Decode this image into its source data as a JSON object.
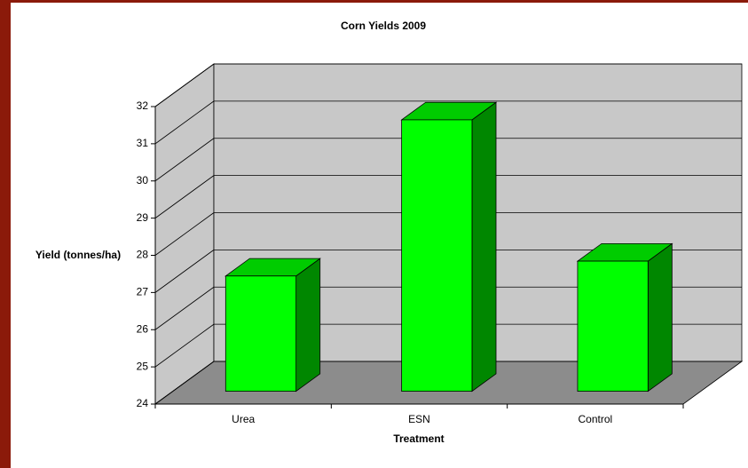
{
  "chart_data": {
    "type": "bar3d",
    "title": "Corn Yields 2009",
    "x_label": "Treatment",
    "y_label": "Yield (tonnes/ha)",
    "categories": [
      "Urea",
      "ESN",
      "Control"
    ],
    "values": [
      27.1,
      31.3,
      27.5
    ],
    "color": "#00ff00",
    "ylim": [
      24,
      32
    ],
    "yticks": [
      24,
      25,
      26,
      27,
      28,
      29,
      30,
      31,
      32
    ],
    "grid": true
  }
}
